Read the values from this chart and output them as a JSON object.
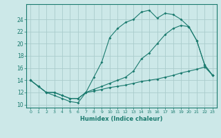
{
  "bg_color": "#cce8e8",
  "grid_color": "#aacccc",
  "line_color": "#1a7a6e",
  "xlabel": "Humidex (Indice chaleur)",
  "xlim": [
    -0.5,
    23.5
  ],
  "ylim": [
    9.5,
    26.5
  ],
  "yticks": [
    10,
    12,
    14,
    16,
    18,
    20,
    22,
    24
  ],
  "xticks": [
    0,
    1,
    2,
    3,
    4,
    5,
    6,
    7,
    8,
    9,
    10,
    11,
    12,
    13,
    14,
    15,
    16,
    17,
    18,
    19,
    20,
    21,
    22,
    23
  ],
  "line1_x": [
    0,
    1,
    2,
    3,
    4,
    5,
    6,
    7,
    8,
    9,
    10,
    11,
    12,
    13,
    14,
    15,
    16,
    17,
    18,
    19,
    20,
    21,
    22,
    23
  ],
  "line1_y": [
    14,
    13,
    12,
    11.5,
    11,
    10.5,
    10.3,
    12,
    14.5,
    17,
    21,
    22.5,
    23.5,
    24,
    25.2,
    25.5,
    24.2,
    25,
    24.8,
    24,
    22.8,
    20.5,
    16.5,
    14.8
  ],
  "line2_x": [
    0,
    1,
    2,
    3,
    4,
    5,
    6,
    7,
    8,
    9,
    10,
    11,
    12,
    13,
    14,
    15,
    16,
    17,
    18,
    19,
    20,
    21,
    22,
    23
  ],
  "line2_y": [
    14,
    13,
    12,
    12,
    11.5,
    11,
    11,
    12,
    12.5,
    13,
    13.5,
    14,
    14.5,
    15.5,
    17.5,
    18.5,
    20,
    21.5,
    22.5,
    23,
    22.8,
    20.5,
    16.5,
    14.8
  ],
  "line3_x": [
    0,
    1,
    2,
    3,
    4,
    5,
    6,
    7,
    8,
    9,
    10,
    11,
    12,
    13,
    14,
    15,
    16,
    17,
    18,
    19,
    20,
    21,
    22,
    23
  ],
  "line3_y": [
    14,
    13,
    12,
    12,
    11.5,
    11,
    11,
    12,
    12.2,
    12.5,
    12.8,
    13,
    13.2,
    13.5,
    13.8,
    14,
    14.2,
    14.5,
    14.8,
    15.2,
    15.5,
    15.8,
    16.2,
    14.8
  ]
}
